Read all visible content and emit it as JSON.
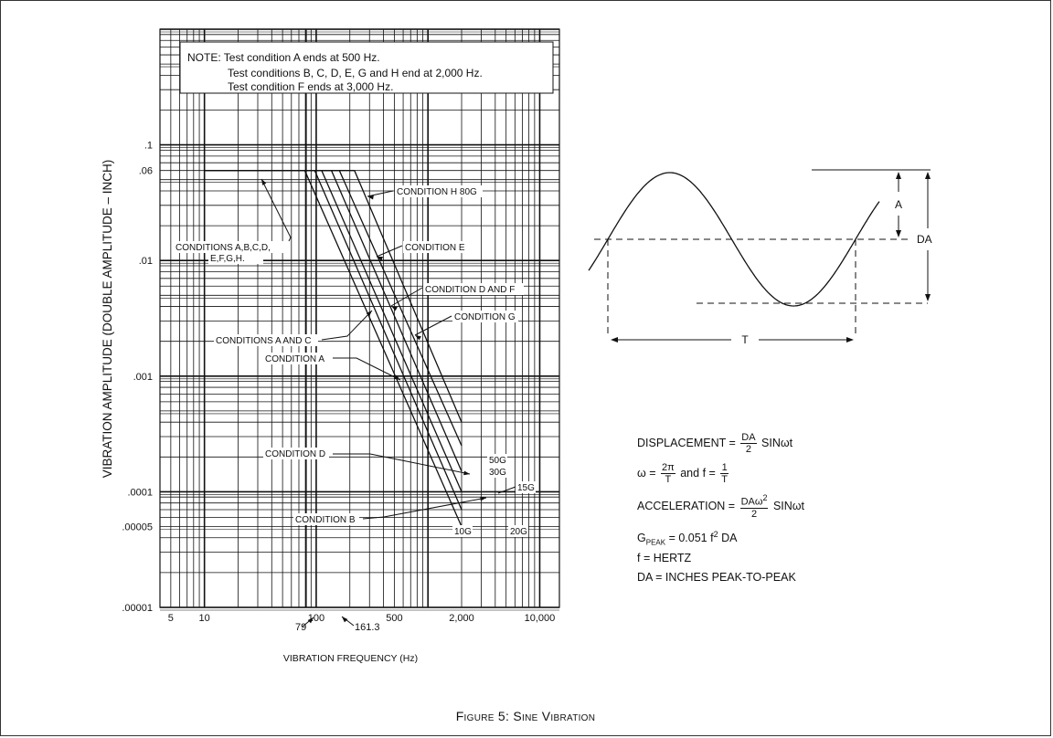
{
  "chart_data": {
    "type": "line",
    "x_scale": "log",
    "y_scale": "log",
    "xlim": [
      4,
      15000
    ],
    "ylim": [
      1e-05,
      1
    ],
    "x_tick_labels": [
      "5",
      "10",
      "100",
      "500",
      "2,000",
      "10,000"
    ],
    "y_tick_labels": [
      ".1",
      ".06",
      ".01",
      ".001",
      ".0001",
      ".00005",
      ".00001"
    ],
    "xlabel": "VIBRATION FREQUENCY (Hz)",
    "ylabel": "VIBRATION AMPLITUDE (DOUBLE AMPLITUDE – INCH)",
    "grid": true,
    "series": [
      {
        "name": "10G",
        "x": [
          10,
          79,
          2000
        ],
        "y": [
          0.06,
          0.06,
          5e-05
        ]
      },
      {
        "name": "15G",
        "x": [
          10,
          97,
          2000
        ],
        "y": [
          0.06,
          0.06,
          7e-05
        ]
      },
      {
        "name": "20G",
        "x": [
          10,
          112,
          2000
        ],
        "y": [
          0.06,
          0.06,
          0.0001
        ]
      },
      {
        "name": "30G",
        "x": [
          10,
          137,
          2000
        ],
        "y": [
          0.06,
          0.06,
          0.00015
        ]
      },
      {
        "name": "50G",
        "x": [
          10,
          161.3,
          2000
        ],
        "y": [
          0.06,
          0.06,
          0.00025
        ]
      },
      {
        "name": "80G",
        "x": [
          10,
          220,
          2000
        ],
        "y": [
          0.06,
          0.06,
          0.0004
        ]
      }
    ],
    "annotations": {
      "note_line1": "NOTE: Test condition A ends at 500 Hz.",
      "note_line2": "Test conditions B, C, D, E, G and H end at 2,000 Hz.",
      "note_line3": "Test condition F ends at 3,000 Hz.",
      "cond_abcd_line1": "CONDITIONS A,B,C,D,",
      "cond_abcd_line2": "E,F,G,H.",
      "cond_h": "CONDITION H 80G",
      "cond_e": "CONDITION E",
      "cond_df": "CONDITION D AND F",
      "cond_g": "CONDITION G",
      "cond_ac": "CONDITIONS A AND C",
      "cond_a": "CONDITION A",
      "cond_d": "CONDITION D",
      "cond_b": "CONDITION B",
      "g50": "50G",
      "g30": "30G",
      "g15": "15G",
      "g10": "10G",
      "g20": "20G",
      "f79": "79",
      "f1613": "161.3"
    }
  },
  "sine_diagram": {
    "label_a": "A",
    "label_da": "DA",
    "label_t": "T"
  },
  "formulas": {
    "displacement_label": "DISPLACEMENT =",
    "displacement_num": "DA",
    "displacement_den": "2",
    "displacement_tail": "SINωt",
    "omega_label": "ω =",
    "omega_num": "2π",
    "omega_den": "T",
    "and_f": "and  f =",
    "f_num": "1",
    "f_den": "T",
    "accel_label": "ACCELERATION =",
    "accel_num": "DAω",
    "accel_exp": "2",
    "accel_den": "2",
    "accel_tail": "SINωt",
    "gpeak_g": "G",
    "gpeak_sub": "PEAK",
    "gpeak_eq": "= 0.051  f",
    "gpeak_exp": "2",
    "gpeak_tail": "DA",
    "hertz": "f = HERTZ",
    "da_def": "DA = INCHES PEAK-TO-PEAK"
  },
  "caption": "Figure 5: Sine Vibration"
}
